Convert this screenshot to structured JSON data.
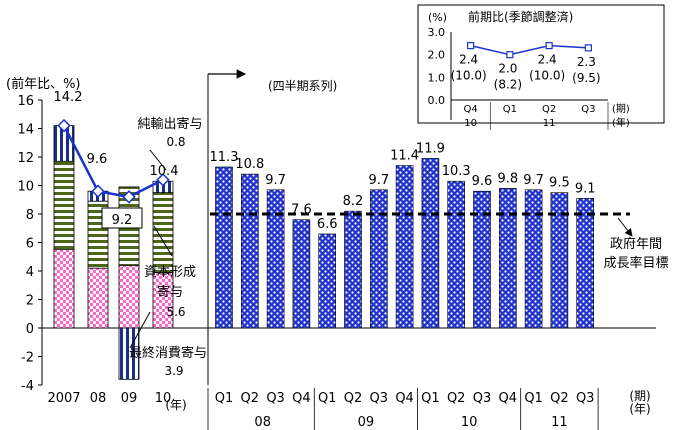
{
  "chart_data": [
    {
      "type": "bar",
      "categories": [
        "2007",
        "08",
        "09",
        "10"
      ],
      "series": [
        {
          "name": "最終消費寄与",
          "values": [
            5.5,
            4.2,
            4.4,
            3.9
          ]
        },
        {
          "name": "資本形成寄与",
          "values": [
            6.2,
            4.7,
            5.5,
            5.6
          ]
        },
        {
          "name": "純輸出寄与",
          "values": [
            2.5,
            0.7,
            -3.6,
            0.8
          ]
        }
      ],
      "line": {
        "values": [
          14.2,
          9.6,
          9.2,
          10.4
        ]
      },
      "labels": [
        "14.2",
        "9.6",
        "9.2",
        "10.4"
      ],
      "ylim": [
        -4,
        16
      ],
      "yticks": [
        "16",
        "14",
        "12",
        "10",
        "8",
        "6",
        "4",
        "2",
        "0",
        "-2",
        "-4"
      ],
      "ylabel": "(前年比、%)",
      "xunit": "(年)"
    },
    {
      "type": "bar",
      "title": "(四半期系列)",
      "categories": [
        "Q1",
        "Q2",
        "Q3",
        "Q4",
        "Q1",
        "Q2",
        "Q3",
        "Q4",
        "Q1",
        "Q2",
        "Q3",
        "Q4",
        "Q1",
        "Q2",
        "Q3"
      ],
      "years": [
        {
          "label": "08",
          "span": 4
        },
        {
          "label": "09",
          "span": 4
        },
        {
          "label": "10",
          "span": 4
        },
        {
          "label": "11",
          "span": 3
        }
      ],
      "values": [
        11.3,
        10.8,
        9.7,
        7.6,
        6.6,
        8.2,
        9.7,
        11.4,
        11.9,
        10.3,
        9.6,
        9.8,
        9.7,
        9.5,
        9.1
      ],
      "labels": [
        "11.3",
        "10.8",
        "9.7",
        "7.6",
        "6.6",
        "8.2",
        "9.7",
        "11.4",
        "11.9",
        "10.3",
        "9.6",
        "9.8",
        "9.7",
        "9.5",
        "9.1"
      ],
      "target": {
        "value": 8,
        "label": "政府年間\n成長率目標"
      },
      "xunit": [
        "(期)",
        "(年)"
      ]
    },
    {
      "type": "line",
      "title": "前期比(季節調整済)",
      "yunit": "(%)",
      "categories": [
        "Q4",
        "Q1",
        "Q2",
        "Q3"
      ],
      "years": [
        {
          "label": "10",
          "span": 1
        },
        {
          "label": "11",
          "span": 3
        }
      ],
      "values": [
        2.4,
        2.0,
        2.4,
        2.3
      ],
      "labels": [
        "2.4",
        "2.0",
        "2.4",
        "2.3"
      ],
      "sublabels": [
        "(10.0)",
        "(8.2)",
        "(10.0)",
        "(9.5)"
      ],
      "ylim": [
        0,
        3
      ],
      "yticks": [
        "3.0",
        "2.0",
        "1.0",
        "0.0"
      ],
      "xunit": [
        "(期)",
        "(年)"
      ]
    }
  ],
  "annotations": {
    "net_exports": "純輸出寄与",
    "net_exports_value": "0.8",
    "capital": "資本形成\n寄与",
    "capital_value": "5.6",
    "consumption": "最終消費寄与",
    "consumption_value": "3.9",
    "target": "政府年間\n成長率目標"
  }
}
